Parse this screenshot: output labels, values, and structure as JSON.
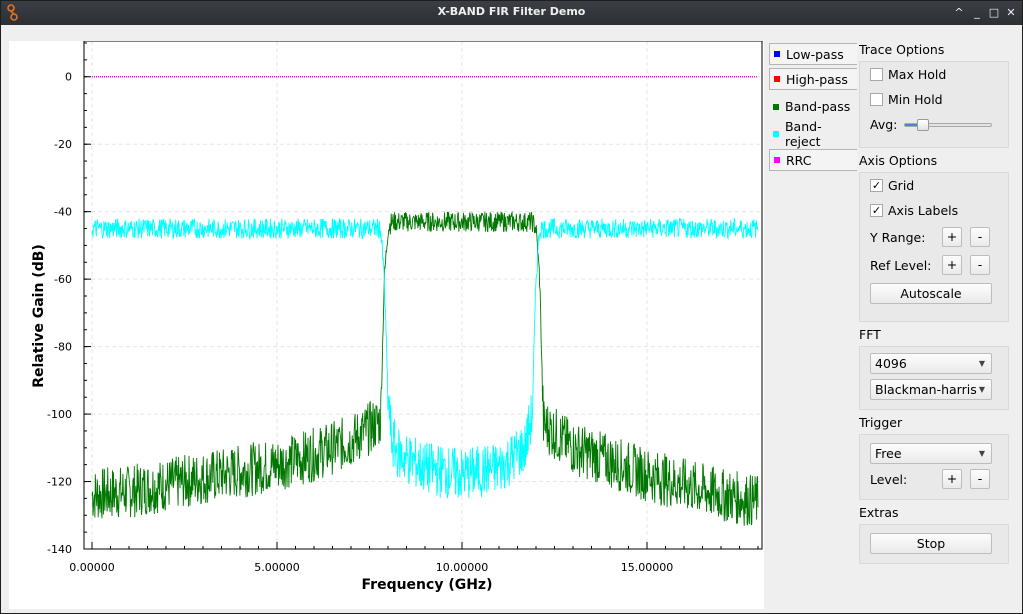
{
  "window": {
    "title": "X-BAND FIR Filter Demo",
    "controls": [
      "^",
      "_",
      "□",
      "✕"
    ]
  },
  "legend": [
    {
      "label": "Low-pass",
      "color": "#0000ff",
      "framed": true
    },
    {
      "label": "High-pass",
      "color": "#ff0000",
      "framed": true
    },
    {
      "label": "Band-pass",
      "color": "#007700",
      "framed": false
    },
    {
      "label": "Band-reject",
      "color": "#00ffff",
      "framed": false
    },
    {
      "label": "RRC",
      "color": "#ff00ff",
      "framed": true
    }
  ],
  "panel": {
    "trace_options": {
      "label": "Trace Options",
      "max_hold": "Max Hold",
      "max_hold_checked": false,
      "min_hold": "Min Hold",
      "min_hold_checked": false,
      "avg_label": "Avg:",
      "avg_level": 0.2
    },
    "axis_options": {
      "label": "Axis Options",
      "grid": "Grid",
      "grid_checked": true,
      "axis_labels": "Axis Labels",
      "axis_labels_checked": true,
      "y_range": "Y Range:",
      "ref_level": "Ref Level:",
      "plus": "+",
      "minus": "-",
      "autoscale": "Autoscale"
    },
    "fft": {
      "label": "FFT",
      "size": "4096",
      "window": "Blackman-harris"
    },
    "trigger": {
      "label": "Trigger",
      "mode": "Free",
      "level": "Level:",
      "plus": "+",
      "minus": "-"
    },
    "extras": {
      "label": "Extras",
      "stop": "Stop"
    }
  },
  "chart_data": {
    "type": "line",
    "xlabel": "Frequency (GHz)",
    "ylabel": "Relative Gain (dB)",
    "xlim": [
      0,
      18
    ],
    "ylim": [
      -140,
      10
    ],
    "xticks": [
      "0.00000",
      "5.00000",
      "10.00000",
      "15.00000"
    ],
    "yticks": [
      "0",
      "-20",
      "-40",
      "-60",
      "-80",
      "-100",
      "-120",
      "-140"
    ],
    "grid": true,
    "series": [
      {
        "name": "Low-pass",
        "color": "#0000ff",
        "x": [
          0,
          18
        ],
        "y": [
          0,
          0
        ]
      },
      {
        "name": "High-pass",
        "color": "#ff0000",
        "x": [
          0,
          18
        ],
        "y": [
          0,
          0
        ]
      },
      {
        "name": "Band-pass",
        "color": "#007700",
        "x": [
          0,
          1,
          2,
          3,
          4,
          5,
          6,
          7,
          7.8,
          7.9,
          8.0,
          8.1,
          9,
          10,
          11,
          11.9,
          12.0,
          12.1,
          12.2,
          13,
          14,
          15,
          16,
          17,
          18
        ],
        "y": [
          -124,
          -123,
          -121,
          -119,
          -117,
          -115,
          -112,
          -108,
          -102,
          -60,
          -45,
          -43,
          -43,
          -43,
          -43,
          -43,
          -45,
          -60,
          -103,
          -110,
          -114,
          -118,
          -121,
          -124,
          -126
        ]
      },
      {
        "name": "Band-reject",
        "color": "#00ffff",
        "x": [
          0,
          2,
          4,
          6,
          7.8,
          7.9,
          8.0,
          8.1,
          8.3,
          9,
          10,
          11,
          11.7,
          11.9,
          12.0,
          12.1,
          14,
          16,
          18
        ],
        "y": [
          -45,
          -45,
          -45,
          -45,
          -45,
          -60,
          -95,
          -108,
          -112,
          -116,
          -118,
          -116,
          -110,
          -100,
          -60,
          -45,
          -45,
          -45,
          -45
        ]
      },
      {
        "name": "RRC",
        "color": "#ff00ff",
        "x": [
          0,
          18
        ],
        "y": [
          0,
          0
        ]
      }
    ]
  }
}
